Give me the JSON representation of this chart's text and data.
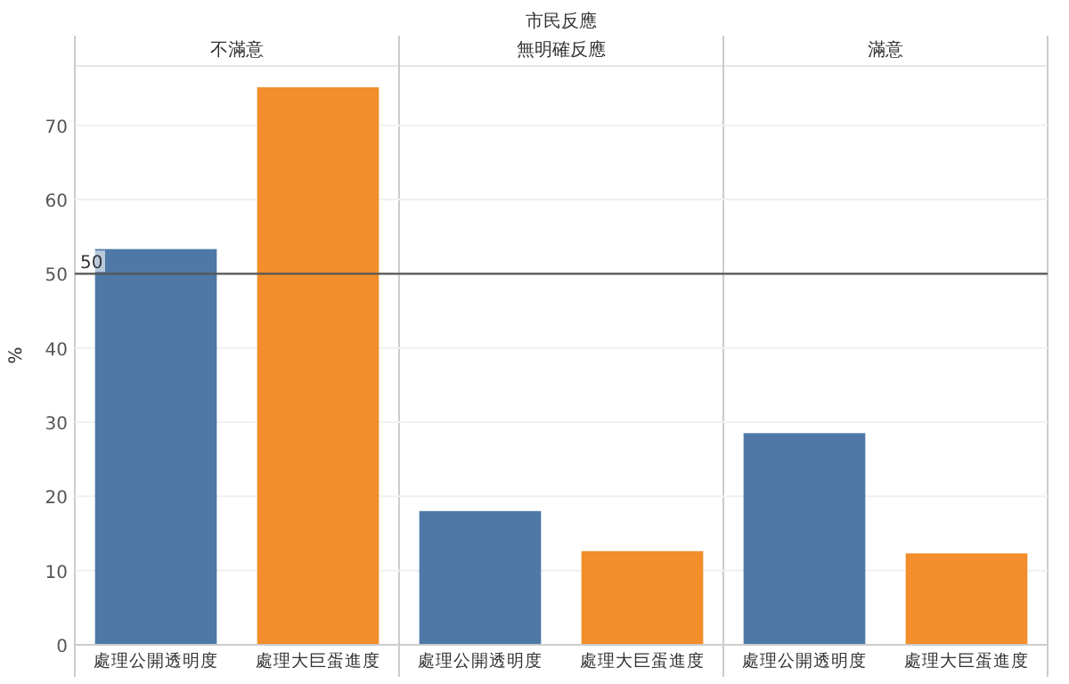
{
  "chart_data": {
    "type": "bar",
    "title": "市民反應",
    "ylabel": "%",
    "categories": [
      "處理公開透明度",
      "處理大巨蛋進度",
      "處理公開透明度",
      "處理大巨蛋進度",
      "處理公開透明度",
      "處理大巨蛋進度"
    ],
    "values": [
      53.2,
      75,
      17.9,
      12.5,
      28.4,
      12.2
    ],
    "colors": [
      "#4e79a7",
      "#f28e2b",
      "#4e79a7",
      "#f28e2b",
      "#4e79a7",
      "#f28e2b"
    ],
    "annotations": [
      "不滿意",
      "無明確反應",
      "滿意"
    ],
    "ylim": [
      0,
      78
    ],
    "yticks": [
      0,
      10,
      20,
      30,
      40,
      50,
      60,
      70
    ],
    "grid": "y",
    "ref_lines": [
      {
        "axis": "y",
        "value": 50,
        "label": "50",
        "color": "#555555"
      }
    ]
  }
}
